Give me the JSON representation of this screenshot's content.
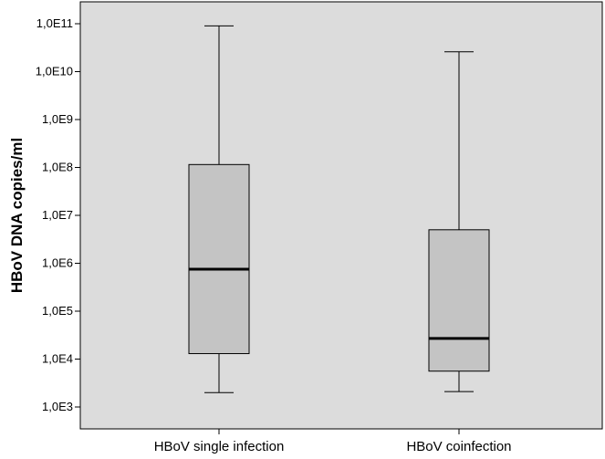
{
  "chart_data": {
    "type": "boxplot",
    "title": "",
    "xlabel": "",
    "ylabel": "HBoV DNA copies/ml",
    "yscale": "log",
    "ylim": [
      1000,
      100000000000
    ],
    "y_ticks": [
      {
        "value": 1000,
        "label": "1,0E3"
      },
      {
        "value": 10000,
        "label": "1,0E4"
      },
      {
        "value": 100000,
        "label": "1,0E5"
      },
      {
        "value": 1000000,
        "label": "1,0E6"
      },
      {
        "value": 10000000,
        "label": "1,0E7"
      },
      {
        "value": 100000000,
        "label": "1,0E8"
      },
      {
        "value": 1000000000,
        "label": "1,0E9"
      },
      {
        "value": 10000000000,
        "label": "1,0E10"
      },
      {
        "value": 100000000000,
        "label": "1,0E11"
      }
    ],
    "categories": [
      "HBoV single infection",
      "HBoV coinfection"
    ],
    "boxes": [
      {
        "min": 2000,
        "q1": 13000,
        "median": 750000,
        "q3": 115000000,
        "max": 90000000000
      },
      {
        "min": 2100,
        "q1": 5600,
        "median": 27000,
        "q3": 5000000,
        "max": 26000000000
      }
    ],
    "grid": false,
    "legend": "none",
    "colors": {
      "plot_background": "#dcdcdc",
      "box_fill": "#c4c4c4",
      "line": "#000000"
    }
  }
}
